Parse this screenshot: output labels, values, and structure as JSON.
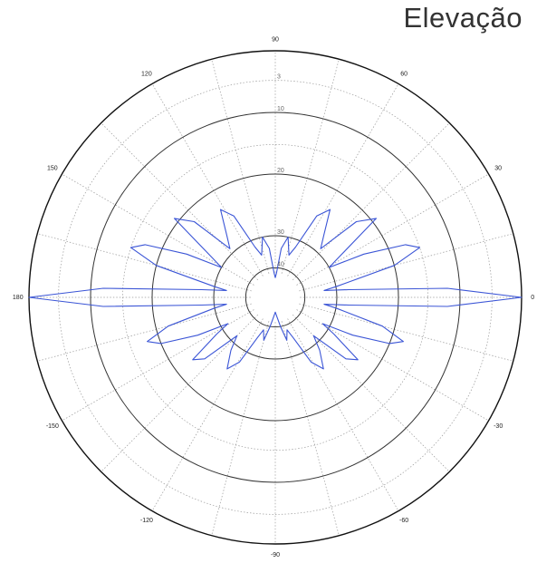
{
  "title": "Elevação",
  "chart_data": {
    "type": "polar-line",
    "title": "Elevação",
    "angle_ticks": [
      {
        "angle": 0,
        "label": "0"
      },
      {
        "angle": 30,
        "label": "30"
      },
      {
        "angle": 60,
        "label": "60"
      },
      {
        "angle": 90,
        "label": "90"
      },
      {
        "angle": 120,
        "label": "120"
      },
      {
        "angle": 150,
        "label": "150"
      },
      {
        "angle": 180,
        "label": "180"
      },
      {
        "angle": 210,
        "label": "-150"
      },
      {
        "angle": 240,
        "label": "-120"
      },
      {
        "angle": 270,
        "label": "-90"
      },
      {
        "angle": 300,
        "label": "-60"
      },
      {
        "angle": 330,
        "label": "-30"
      }
    ],
    "radial_rings": [
      0.12,
      0.25,
      0.5,
      0.75,
      1.0
    ],
    "radial_tick_labels": [
      {
        "r": 0.12,
        "label": "40"
      },
      {
        "r": 0.25,
        "label": "30"
      },
      {
        "r": 0.5,
        "label": "20"
      },
      {
        "r": 0.75,
        "label": "10"
      },
      {
        "r": 0.88,
        "label": "3"
      }
    ],
    "series": [
      {
        "color": "#3b55d6",
        "points": [
          [
            0,
            1.0
          ],
          [
            3,
            0.7
          ],
          [
            6,
            0.3
          ],
          [
            8,
            0.2
          ],
          [
            10,
            0.25
          ],
          [
            15,
            0.5
          ],
          [
            19,
            0.62
          ],
          [
            22,
            0.57
          ],
          [
            26,
            0.4
          ],
          [
            29,
            0.25
          ],
          [
            32,
            0.3
          ],
          [
            38,
            0.52
          ],
          [
            43,
            0.45
          ],
          [
            47,
            0.27
          ],
          [
            52,
            0.32
          ],
          [
            58,
            0.42
          ],
          [
            63,
            0.37
          ],
          [
            68,
            0.22
          ],
          [
            72,
            0.18
          ],
          [
            78,
            0.25
          ],
          [
            83,
            0.2
          ],
          [
            87,
            0.1
          ],
          [
            90,
            0.08
          ],
          [
            93,
            0.1
          ],
          [
            97,
            0.2
          ],
          [
            102,
            0.25
          ],
          [
            108,
            0.18
          ],
          [
            112,
            0.22
          ],
          [
            117,
            0.37
          ],
          [
            122,
            0.42
          ],
          [
            128,
            0.32
          ],
          [
            133,
            0.27
          ],
          [
            137,
            0.45
          ],
          [
            142,
            0.52
          ],
          [
            148,
            0.3
          ],
          [
            151,
            0.25
          ],
          [
            154,
            0.4
          ],
          [
            158,
            0.57
          ],
          [
            161,
            0.62
          ],
          [
            165,
            0.5
          ],
          [
            170,
            0.25
          ],
          [
            172,
            0.2
          ],
          [
            174,
            0.3
          ],
          [
            177,
            0.7
          ],
          [
            180,
            1.0
          ],
          [
            183,
            0.7
          ],
          [
            186,
            0.3
          ],
          [
            188,
            0.2
          ],
          [
            190,
            0.25
          ],
          [
            195,
            0.45
          ],
          [
            199,
            0.55
          ],
          [
            202,
            0.5
          ],
          [
            206,
            0.35
          ],
          [
            209,
            0.22
          ],
          [
            212,
            0.28
          ],
          [
            217,
            0.42
          ],
          [
            221,
            0.38
          ],
          [
            225,
            0.22
          ],
          [
            230,
            0.28
          ],
          [
            236,
            0.35
          ],
          [
            241,
            0.3
          ],
          [
            246,
            0.18
          ],
          [
            250,
            0.14
          ],
          [
            255,
            0.18
          ],
          [
            260,
            0.12
          ],
          [
            265,
            0.08
          ],
          [
            270,
            0.06
          ],
          [
            275,
            0.08
          ],
          [
            280,
            0.12
          ],
          [
            285,
            0.18
          ],
          [
            290,
            0.14
          ],
          [
            294,
            0.18
          ],
          [
            299,
            0.3
          ],
          [
            304,
            0.35
          ],
          [
            310,
            0.28
          ],
          [
            315,
            0.22
          ],
          [
            319,
            0.38
          ],
          [
            323,
            0.42
          ],
          [
            328,
            0.28
          ],
          [
            331,
            0.22
          ],
          [
            334,
            0.35
          ],
          [
            338,
            0.5
          ],
          [
            341,
            0.55
          ],
          [
            345,
            0.45
          ],
          [
            350,
            0.25
          ],
          [
            352,
            0.2
          ],
          [
            354,
            0.3
          ],
          [
            357,
            0.7
          ],
          [
            360,
            1.0
          ]
        ]
      }
    ]
  }
}
